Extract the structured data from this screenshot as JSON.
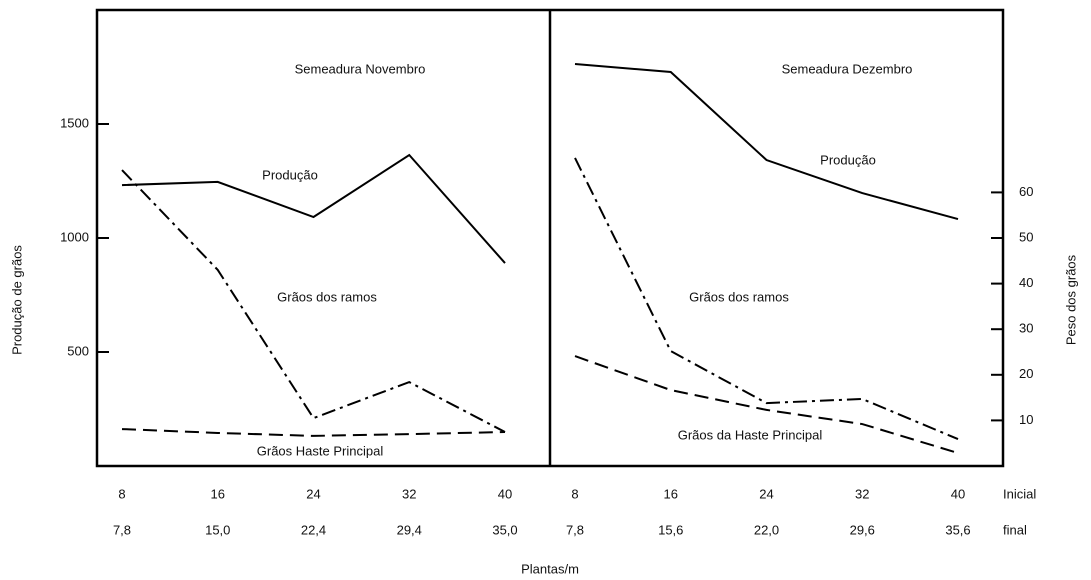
{
  "chart_data": [
    {
      "type": "line",
      "title": "Semeadura Novembro",
      "ylabel": "Produção de grãos",
      "x": [
        8,
        16,
        24,
        32,
        40
      ],
      "x_final": [
        "7,8",
        "15,0",
        "22,4",
        "29,4",
        "35,0"
      ],
      "ylim": [
        0,
        2000
      ],
      "yticks": [
        500,
        1000,
        1500
      ],
      "series": [
        {
          "name": "Produção",
          "color": "#000000",
          "dash": "solid",
          "values": [
            1232,
            1246,
            1092,
            1364,
            890
          ]
        },
        {
          "name": "Grãos dos ramos",
          "color": "#000000",
          "dash": "dashdot",
          "values": [
            1298,
            860,
            210,
            368,
            149
          ]
        },
        {
          "name": "Grãos Haste Principal",
          "color": "#000000",
          "dash": "dashed",
          "values": [
            162,
            145,
            132,
            140,
            149
          ]
        }
      ]
    },
    {
      "type": "line",
      "title": "Semeadura Dezembro",
      "y2label": "Peso dos grãos",
      "x": [
        8,
        16,
        24,
        32,
        40
      ],
      "x_final": [
        "7,8",
        "15,6",
        "22,0",
        "29,6",
        "35,6"
      ],
      "ylim": [
        0,
        2000
      ],
      "y2lim": [
        0,
        100
      ],
      "y2ticks": [
        10,
        20,
        30,
        40,
        50,
        60
      ],
      "series": [
        {
          "name": "Produção",
          "color": "#000000",
          "dash": "solid",
          "values": [
            1763,
            1728,
            1342,
            1197,
            1083
          ]
        },
        {
          "name": "Grãos dos ramos",
          "color": "#000000",
          "dash": "dashdot",
          "values": [
            1351,
            504,
            276,
            294,
            118
          ]
        },
        {
          "name": "Grãos da Haste Principal",
          "color": "#000000",
          "dash": "dashed",
          "values": [
            482,
            333,
            246,
            184,
            57
          ]
        }
      ]
    }
  ],
  "xlabel": "Plantas/m",
  "row_labels": [
    "Inicial",
    "final"
  ]
}
